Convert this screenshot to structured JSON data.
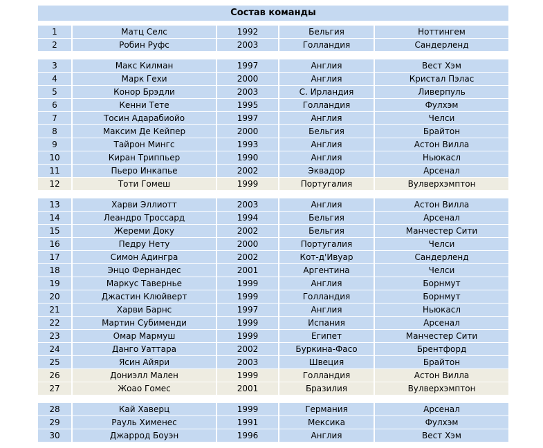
{
  "title": "Состав команды",
  "colors": {
    "row_blue": "#c5d9f1",
    "row_beige": "#eeece1",
    "page_bg": "#ffffff",
    "text": "#000000"
  },
  "table": {
    "column_keys": [
      "number",
      "name",
      "year",
      "country",
      "club"
    ],
    "groups": [
      {
        "rows": [
          {
            "number": "1",
            "name": "Матц Селс",
            "year": "1992",
            "country": "Бельгия",
            "club": "Ноттингем",
            "highlight": false
          },
          {
            "number": "2",
            "name": "Робин Руфс",
            "year": "2003",
            "country": "Голландия",
            "club": "Сандерленд",
            "highlight": false
          }
        ]
      },
      {
        "rows": [
          {
            "number": "3",
            "name": "Макс Килман",
            "year": "1997",
            "country": "Англия",
            "club": "Вест Хэм",
            "highlight": false
          },
          {
            "number": "4",
            "name": "Марк Гехи",
            "year": "2000",
            "country": "Англия",
            "club": "Кристал Пэлас",
            "highlight": false
          },
          {
            "number": "5",
            "name": "Конор Брэдли",
            "year": "2003",
            "country": "С. Ирландия",
            "club": "Ливерпуль",
            "highlight": false
          },
          {
            "number": "6",
            "name": "Кенни Тете",
            "year": "1995",
            "country": "Голландия",
            "club": "Фулхэм",
            "highlight": false
          },
          {
            "number": "7",
            "name": "Тосин Адарабиойо",
            "year": "1997",
            "country": "Англия",
            "club": "Челси",
            "highlight": false
          },
          {
            "number": "8",
            "name": "Максим Де Кейпер",
            "year": "2000",
            "country": "Бельгия",
            "club": "Брайтон",
            "highlight": false
          },
          {
            "number": "9",
            "name": "Тайрон Мингс",
            "year": "1993",
            "country": "Англия",
            "club": "Астон Вилла",
            "highlight": false
          },
          {
            "number": "10",
            "name": "Киран Триппьер",
            "year": "1990",
            "country": "Англия",
            "club": "Ньюкасл",
            "highlight": false
          },
          {
            "number": "11",
            "name": "Пьеро Инкапье",
            "year": "2002",
            "country": "Эквадор",
            "club": "Арсенал",
            "highlight": false
          },
          {
            "number": "12",
            "name": "Тоти Гомеш",
            "year": "1999",
            "country": "Португалия",
            "club": "Вулверхэмптон",
            "highlight": true
          }
        ]
      },
      {
        "rows": [
          {
            "number": "13",
            "name": "Харви Эллиотт",
            "year": "2003",
            "country": "Англия",
            "club": "Астон Вилла",
            "highlight": false
          },
          {
            "number": "14",
            "name": "Леандро Троссард",
            "year": "1994",
            "country": "Бельгия",
            "club": "Арсенал",
            "highlight": false
          },
          {
            "number": "15",
            "name": "Жереми Доку",
            "year": "2002",
            "country": "Бельгия",
            "club": "Манчестер Сити",
            "highlight": false
          },
          {
            "number": "16",
            "name": "Педру Нету",
            "year": "2000",
            "country": "Португалия",
            "club": "Челси",
            "highlight": false
          },
          {
            "number": "17",
            "name": "Симон Адингра",
            "year": "2002",
            "country": "Кот-д'Ивуар",
            "club": "Сандерленд",
            "highlight": false
          },
          {
            "number": "18",
            "name": "Энцо Фернандес",
            "year": "2001",
            "country": "Аргентина",
            "club": "Челси",
            "highlight": false
          },
          {
            "number": "19",
            "name": "Маркус Тавернье",
            "year": "1999",
            "country": "Англия",
            "club": "Борнмут",
            "highlight": false
          },
          {
            "number": "20",
            "name": "Джастин Клюйверт",
            "year": "1999",
            "country": "Голландия",
            "club": "Борнмут",
            "highlight": false
          },
          {
            "number": "21",
            "name": "Харви Барнс",
            "year": "1997",
            "country": "Англия",
            "club": "Ньюкасл",
            "highlight": false
          },
          {
            "number": "22",
            "name": "Мартин Субименди",
            "year": "1999",
            "country": "Испания",
            "club": "Арсенал",
            "highlight": false
          },
          {
            "number": "23",
            "name": "Омар Мармуш",
            "year": "1999",
            "country": "Египет",
            "club": "Манчестер Сити",
            "highlight": false
          },
          {
            "number": "24",
            "name": "Данго Уаттара",
            "year": "2002",
            "country": "Буркина-Фасо",
            "club": "Брентфорд",
            "highlight": false
          },
          {
            "number": "25",
            "name": "Ясин Айяри",
            "year": "2003",
            "country": "Швеция",
            "club": "Брайтон",
            "highlight": false
          },
          {
            "number": "26",
            "name": "Дониэлл Мален",
            "year": "1999",
            "country": "Голландия",
            "club": "Астон Вилла",
            "highlight": true
          },
          {
            "number": "27",
            "name": "Жоао Гомес",
            "year": "2001",
            "country": "Бразилия",
            "club": "Вулверхэмптон",
            "highlight": true
          }
        ]
      },
      {
        "rows": [
          {
            "number": "28",
            "name": "Кай Хаверц",
            "year": "1999",
            "country": "Германия",
            "club": "Арсенал",
            "highlight": false
          },
          {
            "number": "29",
            "name": "Рауль Хименес",
            "year": "1991",
            "country": "Мексика",
            "club": "Фулхэм",
            "highlight": false
          },
          {
            "number": "30",
            "name": "Джаррод Боуэн",
            "year": "1996",
            "country": "Англия",
            "club": "Вест Хэм",
            "highlight": false
          }
        ]
      }
    ]
  }
}
